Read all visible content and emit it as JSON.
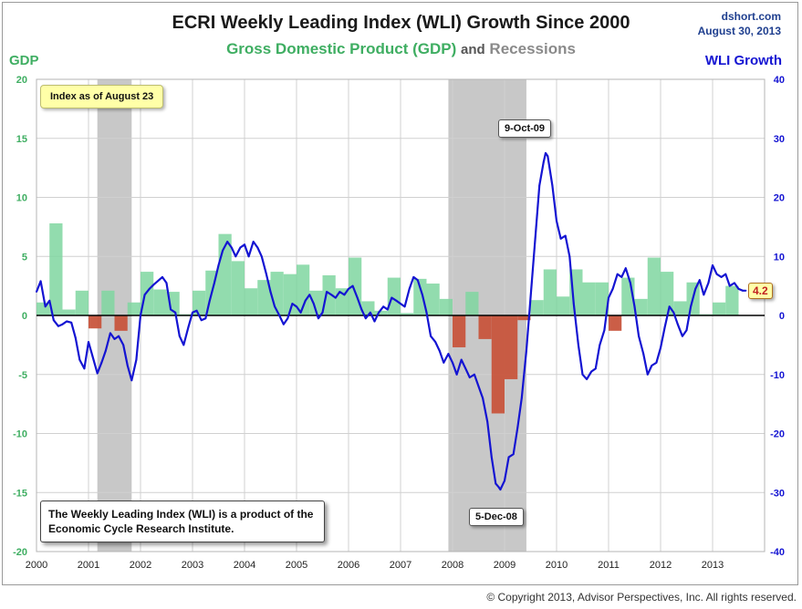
{
  "header": {
    "title": "ECRI Weekly Leading Index (WLI) Growth Since 2000",
    "subtitle_gdp": "Gross Domestic Product (GDP)",
    "subtitle_and": "and",
    "subtitle_recessions": "Recessions",
    "source_site": "dshort.com",
    "source_date": "August 30, 2013"
  },
  "footer": {
    "copyright": "© Copyright 2013, Advisor Perspectives, Inc. All rights reserved."
  },
  "annotations": {
    "index_asof": "Index as of August 23",
    "note": "The Weekly Leading Index (WLI) is a product of the Economic Cycle Research Institute.",
    "peak_label": "9-Oct-09",
    "trough_label": "5-Dec-08",
    "last_value": "4.2"
  },
  "colors": {
    "gdp_positive": "#7fd6a0",
    "gdp_negative": "#c8553d",
    "wli_line": "#1414d2",
    "recession": "#c8c8c8",
    "gdp_text": "#3fae62",
    "wli_text": "#1414d2"
  },
  "chart_data": {
    "type": "bar+line",
    "title": "ECRI Weekly Leading Index (WLI) Growth Since 2000",
    "left_axis": {
      "label": "GDP",
      "range": [
        -20,
        20
      ],
      "ticks": [
        -20,
        -15,
        -10,
        -5,
        0,
        5,
        10,
        15,
        20
      ]
    },
    "right_axis": {
      "label": "WLI Growth",
      "range": [
        -40,
        40
      ],
      "ticks": [
        -40,
        -30,
        -20,
        -10,
        0,
        10,
        20,
        30,
        40
      ]
    },
    "x_axis": {
      "range": [
        2000,
        2014
      ],
      "ticks": [
        "2000",
        "2001",
        "2002",
        "2003",
        "2004",
        "2005",
        "2006",
        "2007",
        "2008",
        "2009",
        "2010",
        "2011",
        "2012",
        "2013"
      ]
    },
    "recessions": [
      {
        "start": 2001.17,
        "end": 2001.83
      },
      {
        "start": 2007.92,
        "end": 2009.42
      }
    ],
    "gdp_series": {
      "name": "Gross Domestic Product (GDP)",
      "unit": "percent",
      "quarters": [
        [
          2000.0,
          1.1
        ],
        [
          2000.25,
          7.8
        ],
        [
          2000.5,
          0.5
        ],
        [
          2000.75,
          2.1
        ],
        [
          2001.0,
          -1.1
        ],
        [
          2001.25,
          2.1
        ],
        [
          2001.5,
          -1.3
        ],
        [
          2001.75,
          1.1
        ],
        [
          2002.0,
          3.7
        ],
        [
          2002.25,
          2.2
        ],
        [
          2002.5,
          2.0
        ],
        [
          2002.75,
          0.1
        ],
        [
          2003.0,
          2.1
        ],
        [
          2003.25,
          3.8
        ],
        [
          2003.5,
          6.9
        ],
        [
          2003.75,
          4.6
        ],
        [
          2004.0,
          2.3
        ],
        [
          2004.25,
          3.0
        ],
        [
          2004.5,
          3.7
        ],
        [
          2004.75,
          3.5
        ],
        [
          2005.0,
          4.3
        ],
        [
          2005.25,
          2.1
        ],
        [
          2005.5,
          3.4
        ],
        [
          2005.75,
          2.3
        ],
        [
          2006.0,
          4.9
        ],
        [
          2006.25,
          1.2
        ],
        [
          2006.5,
          0.4
        ],
        [
          2006.75,
          3.2
        ],
        [
          2007.0,
          0.2
        ],
        [
          2007.25,
          3.1
        ],
        [
          2007.5,
          2.7
        ],
        [
          2007.75,
          1.4
        ],
        [
          2008.0,
          -2.7
        ],
        [
          2008.25,
          2.0
        ],
        [
          2008.5,
          -2.0
        ],
        [
          2008.75,
          -8.3
        ],
        [
          2009.0,
          -5.4
        ],
        [
          2009.25,
          -0.4
        ],
        [
          2009.5,
          1.3
        ],
        [
          2009.75,
          3.9
        ],
        [
          2010.0,
          1.6
        ],
        [
          2010.25,
          3.9
        ],
        [
          2010.5,
          2.8
        ],
        [
          2010.75,
          2.8
        ],
        [
          2011.0,
          -1.3
        ],
        [
          2011.25,
          3.2
        ],
        [
          2011.5,
          1.4
        ],
        [
          2011.75,
          4.9
        ],
        [
          2012.0,
          3.7
        ],
        [
          2012.25,
          1.2
        ],
        [
          2012.5,
          2.8
        ],
        [
          2012.75,
          0.1
        ],
        [
          2013.0,
          1.1
        ],
        [
          2013.25,
          2.5
        ]
      ]
    },
    "wli_series": {
      "name": "WLI Growth",
      "unit": "percent",
      "points": [
        [
          2000.0,
          4.0
        ],
        [
          2000.08,
          5.8
        ],
        [
          2000.17,
          1.5
        ],
        [
          2000.25,
          2.5
        ],
        [
          2000.33,
          -0.8
        ],
        [
          2000.42,
          -1.8
        ],
        [
          2000.5,
          -1.5
        ],
        [
          2000.58,
          -1.0
        ],
        [
          2000.67,
          -1.2
        ],
        [
          2000.75,
          -3.8
        ],
        [
          2000.83,
          -7.5
        ],
        [
          2000.92,
          -9.0
        ],
        [
          2001.0,
          -4.5
        ],
        [
          2001.08,
          -7.0
        ],
        [
          2001.17,
          -9.8
        ],
        [
          2001.25,
          -8.0
        ],
        [
          2001.33,
          -6.0
        ],
        [
          2001.42,
          -3.0
        ],
        [
          2001.5,
          -4.0
        ],
        [
          2001.58,
          -3.5
        ],
        [
          2001.67,
          -5.0
        ],
        [
          2001.75,
          -8.5
        ],
        [
          2001.83,
          -11.0
        ],
        [
          2001.92,
          -7.5
        ],
        [
          2002.0,
          0.0
        ],
        [
          2002.08,
          3.5
        ],
        [
          2002.17,
          4.5
        ],
        [
          2002.25,
          5.2
        ],
        [
          2002.33,
          5.8
        ],
        [
          2002.42,
          6.5
        ],
        [
          2002.5,
          5.5
        ],
        [
          2002.58,
          1.0
        ],
        [
          2002.67,
          0.5
        ],
        [
          2002.75,
          -3.5
        ],
        [
          2002.83,
          -5.0
        ],
        [
          2002.92,
          -2.0
        ],
        [
          2003.0,
          0.5
        ],
        [
          2003.08,
          0.8
        ],
        [
          2003.17,
          -0.8
        ],
        [
          2003.25,
          -0.5
        ],
        [
          2003.33,
          2.5
        ],
        [
          2003.42,
          5.5
        ],
        [
          2003.5,
          8.5
        ],
        [
          2003.58,
          11.0
        ],
        [
          2003.67,
          12.5
        ],
        [
          2003.75,
          11.5
        ],
        [
          2003.83,
          10.0
        ],
        [
          2003.92,
          11.5
        ],
        [
          2004.0,
          12.0
        ],
        [
          2004.08,
          10.0
        ],
        [
          2004.17,
          12.5
        ],
        [
          2004.25,
          11.5
        ],
        [
          2004.33,
          10.0
        ],
        [
          2004.42,
          7.0
        ],
        [
          2004.5,
          4.0
        ],
        [
          2004.58,
          1.5
        ],
        [
          2004.67,
          0.0
        ],
        [
          2004.75,
          -1.5
        ],
        [
          2004.83,
          -0.5
        ],
        [
          2004.92,
          2.0
        ],
        [
          2005.0,
          1.5
        ],
        [
          2005.08,
          0.5
        ],
        [
          2005.17,
          2.5
        ],
        [
          2005.25,
          3.5
        ],
        [
          2005.33,
          2.0
        ],
        [
          2005.42,
          -0.5
        ],
        [
          2005.5,
          0.5
        ],
        [
          2005.58,
          4.0
        ],
        [
          2005.67,
          3.5
        ],
        [
          2005.75,
          3.0
        ],
        [
          2005.83,
          4.0
        ],
        [
          2005.92,
          3.5
        ],
        [
          2006.0,
          4.5
        ],
        [
          2006.08,
          5.0
        ],
        [
          2006.17,
          3.0
        ],
        [
          2006.25,
          1.0
        ],
        [
          2006.33,
          -0.5
        ],
        [
          2006.42,
          0.5
        ],
        [
          2006.5,
          -1.0
        ],
        [
          2006.58,
          0.5
        ],
        [
          2006.67,
          1.5
        ],
        [
          2006.75,
          1.0
        ],
        [
          2006.83,
          3.0
        ],
        [
          2006.92,
          2.5
        ],
        [
          2007.0,
          2.0
        ],
        [
          2007.08,
          1.5
        ],
        [
          2007.17,
          4.5
        ],
        [
          2007.25,
          6.5
        ],
        [
          2007.33,
          6.0
        ],
        [
          2007.42,
          3.5
        ],
        [
          2007.5,
          0.5
        ],
        [
          2007.58,
          -3.5
        ],
        [
          2007.67,
          -4.5
        ],
        [
          2007.75,
          -6.0
        ],
        [
          2007.83,
          -8.0
        ],
        [
          2007.92,
          -6.5
        ],
        [
          2008.0,
          -8.0
        ],
        [
          2008.08,
          -10.0
        ],
        [
          2008.17,
          -7.5
        ],
        [
          2008.25,
          -9.0
        ],
        [
          2008.33,
          -10.5
        ],
        [
          2008.42,
          -10.0
        ],
        [
          2008.5,
          -12.0
        ],
        [
          2008.58,
          -14.0
        ],
        [
          2008.67,
          -18.0
        ],
        [
          2008.75,
          -24.0
        ],
        [
          2008.83,
          -28.5
        ],
        [
          2008.88,
          -29.0
        ],
        [
          2008.92,
          -29.5
        ],
        [
          2009.0,
          -28.0
        ],
        [
          2009.08,
          -24.0
        ],
        [
          2009.17,
          -23.5
        ],
        [
          2009.25,
          -19.0
        ],
        [
          2009.33,
          -14.0
        ],
        [
          2009.42,
          -6.0
        ],
        [
          2009.5,
          3.0
        ],
        [
          2009.58,
          12.0
        ],
        [
          2009.67,
          22.0
        ],
        [
          2009.75,
          26.0
        ],
        [
          2009.79,
          27.5
        ],
        [
          2009.83,
          27.0
        ],
        [
          2009.92,
          22.0
        ],
        [
          2010.0,
          16.0
        ],
        [
          2010.08,
          13.0
        ],
        [
          2010.17,
          13.5
        ],
        [
          2010.25,
          10.0
        ],
        [
          2010.33,
          2.0
        ],
        [
          2010.42,
          -5.0
        ],
        [
          2010.5,
          -10.0
        ],
        [
          2010.58,
          -10.8
        ],
        [
          2010.67,
          -9.5
        ],
        [
          2010.75,
          -9.0
        ],
        [
          2010.83,
          -5.0
        ],
        [
          2010.92,
          -2.5
        ],
        [
          2011.0,
          3.0
        ],
        [
          2011.08,
          4.5
        ],
        [
          2011.17,
          7.0
        ],
        [
          2011.25,
          6.5
        ],
        [
          2011.33,
          8.0
        ],
        [
          2011.42,
          5.5
        ],
        [
          2011.5,
          1.5
        ],
        [
          2011.58,
          -3.5
        ],
        [
          2011.67,
          -6.5
        ],
        [
          2011.75,
          -10.0
        ],
        [
          2011.83,
          -8.5
        ],
        [
          2011.92,
          -8.0
        ],
        [
          2012.0,
          -5.5
        ],
        [
          2012.08,
          -2.0
        ],
        [
          2012.17,
          1.5
        ],
        [
          2012.25,
          0.5
        ],
        [
          2012.33,
          -1.5
        ],
        [
          2012.42,
          -3.5
        ],
        [
          2012.5,
          -2.5
        ],
        [
          2012.58,
          1.5
        ],
        [
          2012.67,
          4.5
        ],
        [
          2012.75,
          6.0
        ],
        [
          2012.83,
          3.5
        ],
        [
          2012.92,
          5.5
        ],
        [
          2013.0,
          8.5
        ],
        [
          2013.08,
          7.0
        ],
        [
          2013.17,
          6.5
        ],
        [
          2013.25,
          7.0
        ],
        [
          2013.33,
          5.0
        ],
        [
          2013.42,
          5.5
        ],
        [
          2013.5,
          4.5
        ],
        [
          2013.58,
          4.2
        ],
        [
          2013.64,
          4.2
        ]
      ]
    }
  }
}
